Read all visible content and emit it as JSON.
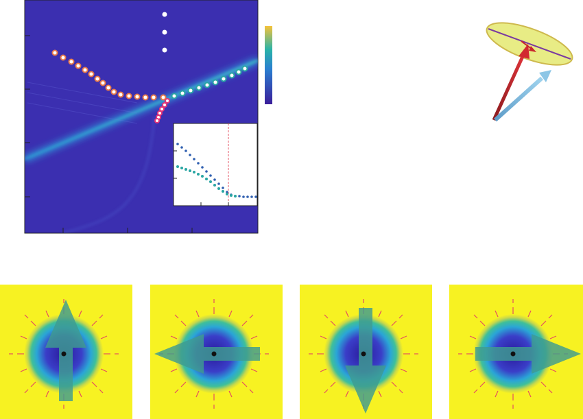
{
  "colors": {
    "background_dark": "#3b2fb0",
    "colorbar_low": "#3a1d9a",
    "colorbar_mid": "#2ab3a8",
    "colorbar_high": "#f5c23a",
    "yellow_field": "#f7f222",
    "arrow_fill": "#3f9c90",
    "ring_red": "#e0336a",
    "dot_white": "#ffffff",
    "dot_pink": "#e3357a",
    "inset_series_a": "#2f5fb0",
    "inset_series_b": "#2aa6a3",
    "inset_vline": "#e45a6a",
    "vector_red": "#c8262c",
    "vector_blue": "#7ab8d9",
    "ellipse_fill": "#e6ea78",
    "ellipse_stroke": "#c9b23a"
  },
  "panels": {
    "spectrum": {
      "has_inset": true,
      "has_colorbar": true
    },
    "vector_diagram": {
      "ellipse": true,
      "arrows": [
        "red-vector",
        "blue-vector"
      ]
    },
    "skyrmion_states": [
      {
        "arrow_direction": "up"
      },
      {
        "arrow_direction": "left"
      },
      {
        "arrow_direction": "down"
      },
      {
        "arrow_direction": "right"
      }
    ]
  },
  "icons": [
    "arrow-up-icon",
    "arrow-left-icon",
    "arrow-down-icon",
    "arrow-right-icon"
  ]
}
